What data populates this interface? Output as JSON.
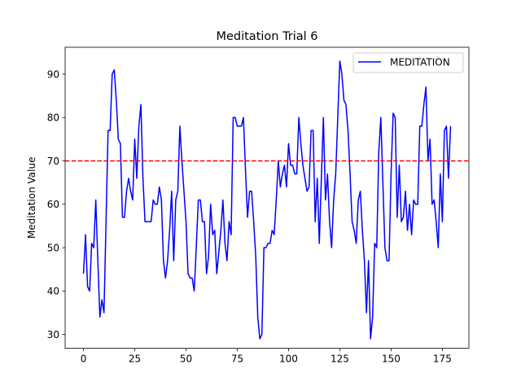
{
  "chart_data": {
    "type": "line",
    "title": "Meditation Trial 6",
    "xlabel": "",
    "ylabel": "Meditation Value",
    "xlim": [
      -8.95,
      187.95
    ],
    "ylim": [
      26.8,
      96.2
    ],
    "xticks": [
      0,
      25,
      50,
      75,
      100,
      125,
      150,
      175
    ],
    "yticks": [
      30,
      40,
      50,
      60,
      70,
      80,
      90
    ],
    "grid": false,
    "legend_position": "top-right",
    "series": [
      {
        "name": "MEDITATION",
        "color": "#0000ff",
        "x_start": 0,
        "x_step": 1,
        "values": [
          44,
          53,
          41,
          40,
          51,
          50,
          61,
          47,
          34,
          38,
          35,
          56,
          77,
          77,
          90,
          91,
          84,
          75,
          74,
          57,
          57,
          63,
          66,
          63,
          61,
          75,
          66,
          78,
          83,
          66,
          56,
          56,
          56,
          56,
          61,
          60,
          60,
          64,
          61,
          47,
          43,
          47,
          54,
          63,
          47,
          61,
          63,
          78,
          70,
          63,
          56,
          44,
          43,
          43,
          40,
          50,
          61,
          61,
          56,
          56,
          44,
          48,
          60,
          53,
          54,
          44,
          49,
          54,
          61,
          51,
          47,
          56,
          53,
          80,
          80,
          78,
          78,
          78,
          80,
          68,
          57,
          63,
          63,
          56,
          48,
          34,
          29,
          30,
          50,
          50,
          51,
          51,
          54,
          53,
          61,
          70,
          64,
          67,
          69,
          64,
          74,
          69,
          69,
          67,
          67,
          80,
          74,
          69,
          66,
          63,
          64,
          77,
          77,
          56,
          66,
          51,
          66,
          80,
          61,
          67,
          56,
          50,
          61,
          67,
          80,
          93,
          90,
          84,
          83,
          77,
          67,
          56,
          54,
          51,
          61,
          63,
          54,
          47,
          35,
          47,
          29,
          34,
          51,
          50,
          72,
          80,
          65,
          50,
          47,
          47,
          67,
          81,
          80,
          57,
          69,
          56,
          57,
          63,
          54,
          60,
          53,
          61,
          60,
          60,
          78,
          78,
          83,
          87,
          70,
          75,
          60,
          61,
          56,
          50,
          67,
          56,
          77,
          78,
          66,
          78
        ]
      },
      {
        "name": "",
        "color": "#ff0000",
        "style": "dashed",
        "type": "hline",
        "y": 70
      }
    ]
  }
}
